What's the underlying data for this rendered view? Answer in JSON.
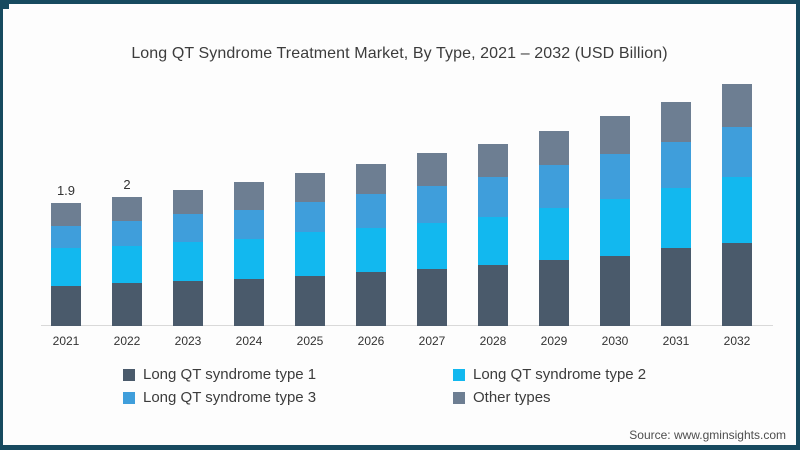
{
  "title": "Long QT Syndrome Treatment Market, By Type, 2021 – 2032 (USD Billion)",
  "source": {
    "label": "Source: www.gminsights.com"
  },
  "frame": {
    "border_color": "#174a5f",
    "background": "#fdfdfd"
  },
  "chart_data": {
    "type": "bar",
    "stacked": true,
    "title": "Long QT Syndrome Treatment Market, By Type, 2021 – 2032 (USD Billion)",
    "unit": "USD Billion",
    "xlabel": "",
    "ylabel": "",
    "ylim": [
      0,
      4
    ],
    "grid": false,
    "legend_position": "bottom",
    "categories": [
      "2021",
      "2022",
      "2023",
      "2024",
      "2025",
      "2026",
      "2027",
      "2028",
      "2029",
      "2030",
      "2031",
      "2032"
    ],
    "series": [
      {
        "name": "Long QT syndrome type 1",
        "color": "#4a5a6b",
        "values": [
          0.62,
          0.66,
          0.69,
          0.73,
          0.78,
          0.84,
          0.88,
          0.94,
          1.02,
          1.08,
          1.2,
          1.28
        ]
      },
      {
        "name": "Long QT syndrome type 2",
        "color": "#12b8ef",
        "values": [
          0.58,
          0.57,
          0.61,
          0.62,
          0.68,
          0.67,
          0.71,
          0.75,
          0.81,
          0.88,
          0.93,
          1.02
        ]
      },
      {
        "name": "Long QT syndrome type 3",
        "color": "#3f9edb",
        "values": [
          0.34,
          0.4,
          0.43,
          0.44,
          0.45,
          0.53,
          0.57,
          0.61,
          0.66,
          0.7,
          0.72,
          0.77
        ]
      },
      {
        "name": "Other types",
        "color": "#6d7e92",
        "values": [
          0.36,
          0.36,
          0.37,
          0.43,
          0.45,
          0.46,
          0.51,
          0.52,
          0.52,
          0.58,
          0.61,
          0.67
        ]
      }
    ],
    "totals": [
      1.9,
      2.0,
      2.1,
      2.22,
      2.36,
      2.5,
      2.67,
      2.82,
      3.01,
      3.24,
      3.46,
      3.74
    ],
    "value_labels": [
      "1.9",
      "2",
      "",
      "",
      "",
      "",
      "",
      "",
      "",
      "",
      "",
      ""
    ]
  }
}
